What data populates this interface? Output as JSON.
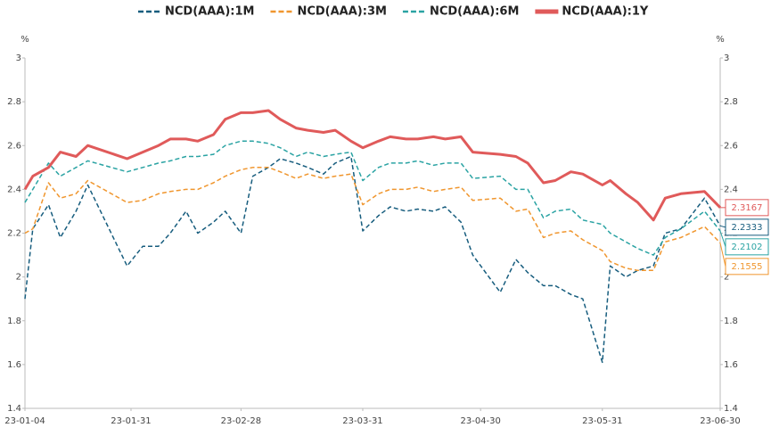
{
  "chart_data": {
    "type": "line",
    "x": [
      "23-01-04",
      "23-01-06",
      "23-01-10",
      "23-01-13",
      "23-01-17",
      "23-01-20",
      "23-01-30",
      "23-02-03",
      "23-02-07",
      "23-02-10",
      "23-02-14",
      "23-02-17",
      "23-02-21",
      "23-02-24",
      "23-02-28",
      "23-03-03",
      "23-03-07",
      "23-03-10",
      "23-03-14",
      "23-03-17",
      "23-03-21",
      "23-03-24",
      "23-03-28",
      "23-03-31",
      "23-04-04",
      "23-04-07",
      "23-04-11",
      "23-04-14",
      "23-04-18",
      "23-04-21",
      "23-04-25",
      "23-04-28",
      "23-05-05",
      "23-05-09",
      "23-05-12",
      "23-05-16",
      "23-05-19",
      "23-05-23",
      "23-05-26",
      "23-05-31",
      "23-06-02",
      "23-06-06",
      "23-06-09",
      "23-06-13",
      "23-06-16",
      "23-06-20",
      "23-06-26",
      "23-06-30"
    ],
    "series": [
      {
        "name": "NCD(AAA):1M",
        "color": "#175d7e",
        "style": "dashed",
        "values": [
          1.9,
          2.22,
          2.33,
          2.18,
          2.3,
          2.42,
          2.05,
          2.14,
          2.14,
          2.2,
          2.3,
          2.2,
          2.25,
          2.3,
          2.2,
          2.46,
          2.5,
          2.54,
          2.52,
          2.5,
          2.47,
          2.52,
          2.55,
          2.21,
          2.28,
          2.32,
          2.3,
          2.31,
          2.3,
          2.32,
          2.25,
          2.1,
          1.93,
          2.08,
          2.02,
          1.96,
          1.96,
          1.92,
          1.9,
          1.61,
          2.05,
          2.0,
          2.03,
          2.05,
          2.2,
          2.22,
          2.36,
          2.2333
        ]
      },
      {
        "name": "NCD(AAA):3M",
        "color": "#f0962e",
        "style": "dashed",
        "values": [
          2.2,
          2.22,
          2.43,
          2.36,
          2.38,
          2.44,
          2.34,
          2.35,
          2.38,
          2.39,
          2.4,
          2.4,
          2.43,
          2.46,
          2.49,
          2.5,
          2.5,
          2.48,
          2.45,
          2.47,
          2.45,
          2.46,
          2.47,
          2.33,
          2.38,
          2.4,
          2.4,
          2.41,
          2.39,
          2.4,
          2.41,
          2.35,
          2.36,
          2.3,
          2.31,
          2.18,
          2.2,
          2.21,
          2.17,
          2.12,
          2.07,
          2.04,
          2.03,
          2.03,
          2.16,
          2.18,
          2.23,
          2.1555
        ]
      },
      {
        "name": "NCD(AAA):6M",
        "color": "#2aa3a3",
        "style": "dashed",
        "values": [
          2.34,
          2.4,
          2.52,
          2.46,
          2.5,
          2.53,
          2.48,
          2.5,
          2.52,
          2.53,
          2.55,
          2.55,
          2.56,
          2.6,
          2.62,
          2.62,
          2.61,
          2.59,
          2.55,
          2.57,
          2.55,
          2.56,
          2.57,
          2.44,
          2.5,
          2.52,
          2.52,
          2.53,
          2.51,
          2.52,
          2.52,
          2.45,
          2.46,
          2.4,
          2.4,
          2.27,
          2.3,
          2.31,
          2.26,
          2.24,
          2.2,
          2.16,
          2.13,
          2.1,
          2.18,
          2.22,
          2.3,
          2.2102
        ]
      },
      {
        "name": "NCD(AAA):1Y",
        "color": "#e05a5a",
        "style": "solid",
        "values": [
          2.4,
          2.46,
          2.5,
          2.57,
          2.55,
          2.6,
          2.54,
          2.57,
          2.6,
          2.63,
          2.63,
          2.62,
          2.65,
          2.72,
          2.75,
          2.75,
          2.76,
          2.72,
          2.68,
          2.67,
          2.66,
          2.67,
          2.62,
          2.59,
          2.62,
          2.64,
          2.63,
          2.63,
          2.64,
          2.63,
          2.64,
          2.57,
          2.56,
          2.55,
          2.52,
          2.43,
          2.44,
          2.48,
          2.47,
          2.42,
          2.44,
          2.38,
          2.34,
          2.26,
          2.36,
          2.38,
          2.39,
          2.3167
        ]
      }
    ],
    "xlim": [
      "23-01-04",
      "23-06-30"
    ],
    "xticks": [
      "23-01-04",
      "23-01-31",
      "23-02-28",
      "23-03-31",
      "23-04-30",
      "23-05-31",
      "23-06-30"
    ],
    "ylim": [
      1.4,
      3
    ],
    "yticks": [
      1.4,
      1.6,
      1.8,
      2,
      2.2,
      2.4,
      2.6,
      2.8,
      3
    ],
    "y2lim": [
      1.4,
      3
    ],
    "y2ticks": [
      1.4,
      1.6,
      1.8,
      2,
      2.2,
      2.4,
      2.6,
      2.8,
      3
    ],
    "y_label": "%",
    "y2_label": "%",
    "grid": false,
    "legend": "top"
  }
}
